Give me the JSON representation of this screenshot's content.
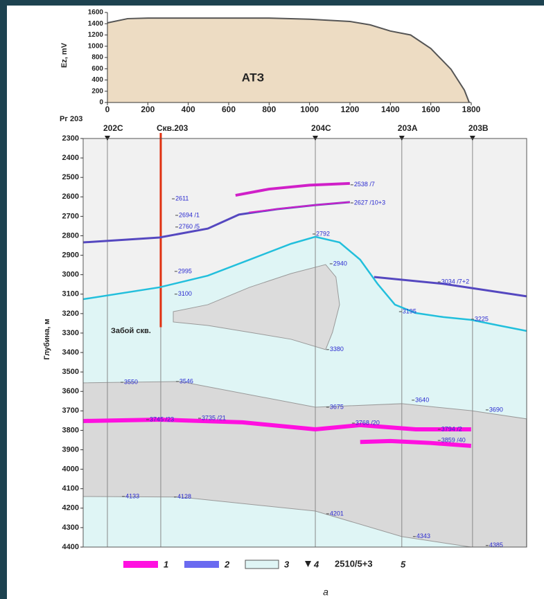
{
  "chart_data": [
    {
      "type": "area",
      "annotation": "АТЗ",
      "ylabel": "Ez, mV",
      "x": [
        0,
        100,
        200,
        400,
        600,
        800,
        1000,
        1200,
        1300,
        1400,
        1500,
        1600,
        1700,
        1766,
        1790
      ],
      "values": [
        1415,
        1490,
        1500,
        1500,
        1500,
        1500,
        1480,
        1440,
        1380,
        1270,
        1200,
        960,
        590,
        220,
        0
      ],
      "color": "#eddcc3",
      "line_color": "#555555",
      "xlim": [
        0,
        1800
      ],
      "xticks": [
        0,
        200,
        400,
        600,
        800,
        1000,
        1200,
        1400,
        1600,
        1800
      ],
      "ylim": [
        0,
        1600
      ],
      "yticks": [
        0,
        200,
        400,
        600,
        800,
        1000,
        1200,
        1400,
        1600
      ]
    },
    {
      "type": "section",
      "profile": "Рг 203",
      "ylabel": "Глубина, м",
      "bottom_note": "Забой скв.",
      "caption": "а",
      "xlim": [
        -120,
        2075
      ],
      "ylim": [
        2300,
        4400
      ],
      "y_inverted": true,
      "yticks": [
        2300,
        2400,
        2500,
        2600,
        2700,
        2800,
        2900,
        3000,
        3100,
        3200,
        3300,
        3400,
        3500,
        3600,
        3700,
        3800,
        3900,
        4000,
        4100,
        4200,
        4300,
        4400
      ],
      "upper_color": "#f1f1f1",
      "zone_color": "#dff5f5",
      "gray_color": "#d9d9d9",
      "wells": [
        {
          "label": "202С",
          "x": 0,
          "marker": true,
          "color": "#777777"
        },
        {
          "label": "Скв.203",
          "x": 264,
          "marker": false,
          "color": "#e03010",
          "bottom": 3270
        },
        {
          "label": "204С",
          "x": 1029,
          "marker": true,
          "color": "#777777"
        },
        {
          "label": "203А",
          "x": 1457,
          "marker": true,
          "color": "#777777"
        },
        {
          "label": "203В",
          "x": 1807,
          "marker": true,
          "color": "#777777"
        }
      ],
      "top_boundary": {
        "x": [
          -120,
          257,
          497,
          703,
          909,
          1029,
          1149,
          1251,
          1337,
          1423,
          1526,
          1663,
          1800,
          1937,
          2074
        ],
        "y": [
          3126,
          3065,
          3005,
          2923,
          2841,
          2805,
          2834,
          2923,
          3047,
          3154,
          3197,
          3218,
          3232,
          3261,
          3289
        ],
        "color": "#22bfdc"
      },
      "gray_top": {
        "x": [
          -120,
          360,
          1029,
          1457,
          1800,
          2074
        ],
        "y": [
          3556,
          3549,
          3681,
          3663,
          3699,
          3741
        ]
      },
      "gray_bottom": {
        "x": [
          -120,
          360,
          1029,
          1457,
          1800,
          2074
        ],
        "y": [
          4140,
          4143,
          4215,
          4346,
          4400,
          4400
        ]
      },
      "lens": {
        "x": [
          326,
          497,
          703,
          909,
          1080,
          1131,
          1149,
          1114,
          1080,
          909,
          703,
          497,
          326
        ],
        "y": [
          3190,
          3154,
          3065,
          2994,
          2948,
          3012,
          3154,
          3296,
          3385,
          3332,
          3296,
          3261,
          3243
        ]
      },
      "horizons": [
        {
          "x": [
            634,
            800,
            1000,
            1200
          ],
          "y": [
            2592,
            2560,
            2540,
            2531
          ],
          "color": "#d020c8",
          "width": 4
        },
        {
          "x": [
            -120,
            257,
            497,
            651,
            840,
            1029,
            1200
          ],
          "y": [
            2834,
            2809,
            2763,
            2691,
            2663,
            2642,
            2627
          ],
          "color": "#5548c0",
          "width": 3
        },
        {
          "x": [
            700,
            900,
            1100,
            1200
          ],
          "y": [
            2680,
            2655,
            2635,
            2627
          ],
          "color": "#d020c8",
          "width": 2
        },
        {
          "x": [
            1320,
            1663,
            2074
          ],
          "y": [
            3012,
            3047,
            3111
          ],
          "color": "#5548c0",
          "width": 3
        },
        {
          "x": [
            -120,
            257,
            669,
            1029,
            1251,
            1526,
            1800
          ],
          "y": [
            3752,
            3745,
            3759,
            3795,
            3773,
            3795,
            3795
          ],
          "color": "#ff10e0",
          "width": 6
        },
        {
          "x": [
            1251,
            1400,
            1600,
            1800
          ],
          "y": [
            3860,
            3855,
            3865,
            3880
          ],
          "color": "#ff10e0",
          "width": 6
        }
      ],
      "annotations": [
        {
          "text": "2611",
          "x": 333,
          "y": 2610
        },
        {
          "text": "2694 /1",
          "x": 350,
          "y": 2695
        },
        {
          "text": "2760 /5",
          "x": 350,
          "y": 2755
        },
        {
          "text": "2538 /7",
          "x": 1217,
          "y": 2538
        },
        {
          "text": "2627 /10+3",
          "x": 1217,
          "y": 2631
        },
        {
          "text": "2792",
          "x": 1029,
          "y": 2791
        },
        {
          "text": "2940",
          "x": 1114,
          "y": 2944
        },
        {
          "text": "2995",
          "x": 346,
          "y": 2983
        },
        {
          "text": "3100",
          "x": 346,
          "y": 3100
        },
        {
          "text": "3034 /7+2",
          "x": 1649,
          "y": 3037
        },
        {
          "text": "3195",
          "x": 1457,
          "y": 3190
        },
        {
          "text": "3225",
          "x": 1814,
          "y": 3229
        },
        {
          "text": "3380",
          "x": 1097,
          "y": 3385
        },
        {
          "text": "3550",
          "x": 79,
          "y": 3553
        },
        {
          "text": "3546",
          "x": 353,
          "y": 3549
        },
        {
          "text": "3675",
          "x": 1097,
          "y": 3681
        },
        {
          "text": "3640",
          "x": 1520,
          "y": 3645
        },
        {
          "text": "3690",
          "x": 1886,
          "y": 3695
        },
        {
          "text": "3745 /23",
          "x": 206,
          "y": 3745
        },
        {
          "text": "3735 /21",
          "x": 463,
          "y": 3738
        },
        {
          "text": "3768 /20",
          "x": 1224,
          "y": 3763
        },
        {
          "text": "3794 /2",
          "x": 1649,
          "y": 3795
        },
        {
          "text": "3859 /40",
          "x": 1649,
          "y": 3852
        },
        {
          "text": "4133",
          "x": 86,
          "y": 4140
        },
        {
          "text": "4128",
          "x": 343,
          "y": 4143
        },
        {
          "text": "4201",
          "x": 1097,
          "y": 4229
        },
        {
          "text": "4343",
          "x": 1526,
          "y": 4346
        },
        {
          "text": "4385",
          "x": 1886,
          "y": 4392
        }
      ],
      "legend": [
        {
          "label": "1",
          "kind": "bar",
          "color": "#ff10e0"
        },
        {
          "label": "2",
          "kind": "bar",
          "color": "#6a6af0"
        },
        {
          "label": "3",
          "kind": "box",
          "color": "#dff5f5"
        },
        {
          "label": "4",
          "kind": "triangle",
          "color": "#222222"
        },
        {
          "label": "5",
          "kind": "sample",
          "sample": "2510/5+3"
        }
      ]
    }
  ]
}
